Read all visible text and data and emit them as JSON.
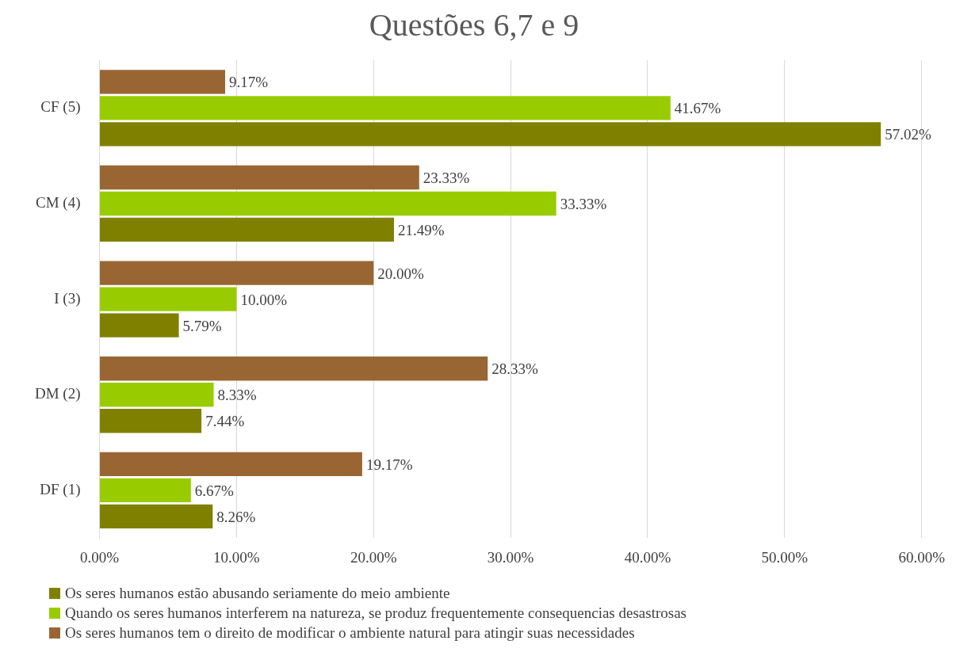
{
  "chart_data": {
    "type": "bar",
    "orientation": "horizontal",
    "title": "Questões 6,7 e 9",
    "categories": [
      "CF (5)",
      "CM (4)",
      "I (3)",
      "DM (2)",
      "DF (1)"
    ],
    "series": [
      {
        "name": "Os seres humanos estão abusando seriamente do meio ambiente",
        "color": "#808000",
        "values": [
          57.02,
          21.49,
          5.79,
          7.44,
          8.26
        ],
        "value_labels": [
          "57.02%",
          "21.49%",
          "5.79%",
          "7.44%",
          "8.26%"
        ]
      },
      {
        "name": "Quando os seres humanos interferem na natureza, se produz frequentemente consequencias desastrosas",
        "color": "#99cc00",
        "values": [
          41.67,
          33.33,
          10.0,
          8.33,
          6.67
        ],
        "value_labels": [
          "41.67%",
          "33.33%",
          "10.00%",
          "8.33%",
          "6.67%"
        ]
      },
      {
        "name": "Os seres humanos tem o direito de modificar o ambiente natural para atingir suas necessidades",
        "color": "#996633",
        "values": [
          9.17,
          23.33,
          20.0,
          28.33,
          19.17
        ],
        "value_labels": [
          "9.17%",
          "23.33%",
          "20.00%",
          "28.33%",
          "19.17%"
        ]
      }
    ],
    "xlim": [
      0,
      60
    ],
    "xticks": [
      {
        "value": 0,
        "label": "0.00%"
      },
      {
        "value": 10,
        "label": "10.00%"
      },
      {
        "value": 20,
        "label": "20.00%"
      },
      {
        "value": 30,
        "label": "30.00%"
      },
      {
        "value": 40,
        "label": "40.00%"
      },
      {
        "value": 50,
        "label": "50.00%"
      },
      {
        "value": 60,
        "label": "60.00%"
      }
    ],
    "grid": "x",
    "legend": "bottom"
  }
}
